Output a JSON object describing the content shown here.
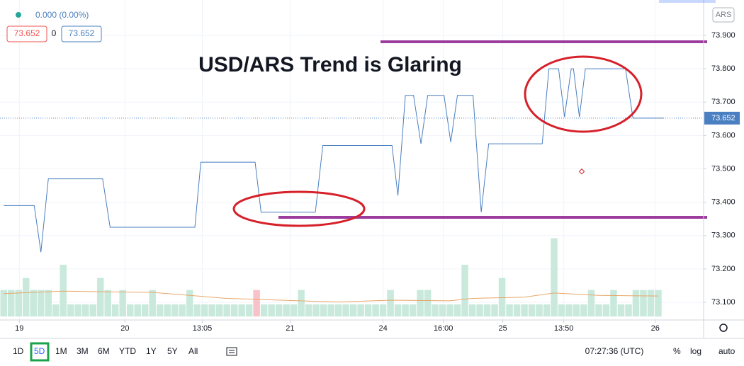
{
  "header": {
    "change": "0.000 (0.00%)",
    "bid": "73.652",
    "spread": "0",
    "ask": "73.652",
    "currency": "ARS"
  },
  "annotation": "USD/ARS Trend is Glaring",
  "chart_data": {
    "type": "line",
    "series": [
      {
        "name": "USD/ARS",
        "color": "#4a7fc1",
        "x": [
          0,
          4.1,
          5,
          6,
          13.3,
          14.3,
          25.7,
          26.5,
          33.8,
          34.6,
          41.9,
          42.9,
          52.2,
          53,
          54,
          55.1,
          56.1,
          57,
          59.2,
          60.1,
          61,
          63.1,
          64.2,
          65.2,
          72.4,
          73.3,
          74.6,
          75.4,
          76.3,
          76.6,
          77.4,
          78.2,
          83.6,
          84.6,
          88.7
        ],
        "values": [
          73.39,
          73.39,
          73.25,
          73.47,
          73.47,
          73.325,
          73.325,
          73.52,
          73.52,
          73.37,
          73.37,
          73.57,
          73.57,
          73.42,
          73.72,
          73.72,
          73.575,
          73.72,
          73.72,
          73.58,
          73.72,
          73.72,
          73.37,
          73.575,
          73.575,
          73.8,
          73.8,
          73.655,
          73.8,
          73.8,
          73.655,
          73.8,
          73.8,
          73.652,
          73.652
        ]
      }
    ],
    "last_price": {
      "value": 73.652,
      "label": "73.652"
    },
    "xlim": [
      -0.5,
      94.1
    ],
    "xticks": [
      {
        "value": 2.1,
        "label": "19"
      },
      {
        "value": 16.3,
        "label": "20"
      },
      {
        "value": 26.7,
        "label": "13:05"
      },
      {
        "value": 38.5,
        "label": "21"
      },
      {
        "value": 51,
        "label": "24"
      },
      {
        "value": 59.1,
        "label": "16:00"
      },
      {
        "value": 67.1,
        "label": "25"
      },
      {
        "value": 75.3,
        "label": "13:50"
      },
      {
        "value": 87.6,
        "label": "26"
      }
    ],
    "ylim": [
      73.047,
      74.006
    ],
    "yticks": [
      {
        "value": 73.1,
        "label": "73.100"
      },
      {
        "value": 73.2,
        "label": "73.200"
      },
      {
        "value": 73.3,
        "label": "73.300"
      },
      {
        "value": 73.4,
        "label": "73.400"
      },
      {
        "value": 73.5,
        "label": "73.500"
      },
      {
        "value": 73.6,
        "label": "73.600"
      },
      {
        "value": 73.7,
        "label": "73.700"
      },
      {
        "value": 73.8,
        "label": "73.800"
      },
      {
        "value": 73.9,
        "label": "73.900"
      }
    ],
    "grid": true,
    "volume": {
      "up_color": "#c9e9dc",
      "down_color": "#f7c3c8",
      "down": [
        34
      ],
      "vlim": [
        0,
        26.3
      ],
      "values": [
        2.2,
        2.2,
        2.2,
        3.2,
        2.2,
        2.2,
        2.2,
        1,
        4.3,
        1,
        1,
        1,
        1,
        3.2,
        2.2,
        1,
        2.2,
        1,
        1,
        1,
        2.2,
        1,
        1,
        1,
        1,
        2.2,
        1,
        1,
        1,
        1,
        1,
        1,
        1,
        1,
        2.2,
        1,
        1,
        1,
        1,
        1,
        2.2,
        1,
        1,
        1,
        1,
        1,
        1,
        1,
        1,
        1,
        1,
        1,
        2.2,
        1,
        1,
        1,
        2.2,
        2.2,
        1,
        1,
        1,
        1,
        4.3,
        1,
        1,
        1,
        1,
        3.2,
        1,
        1,
        1,
        1,
        1,
        1,
        6.5,
        1,
        1,
        1,
        1,
        2.2,
        1,
        1,
        2.2,
        1,
        1,
        2.2,
        2.2,
        2.2,
        2.2
      ],
      "ma": {
        "color": "#e8a76a",
        "x": [
          0,
          8,
          20,
          30,
          45,
          52,
          60,
          63,
          70,
          74,
          80,
          88
        ],
        "values": [
          1.9,
          2.1,
          2.0,
          1.5,
          1.2,
          1.35,
          1.3,
          1.5,
          1.6,
          1.95,
          1.75,
          1.7
        ]
      }
    }
  },
  "toolbar": {
    "ranges": [
      "1D",
      "5D",
      "1M",
      "3M",
      "6M",
      "YTD",
      "1Y",
      "5Y",
      "All"
    ],
    "selected_range": 1,
    "clock": "07:27:36 (UTC)",
    "options": [
      "%",
      "log",
      "auto"
    ]
  }
}
